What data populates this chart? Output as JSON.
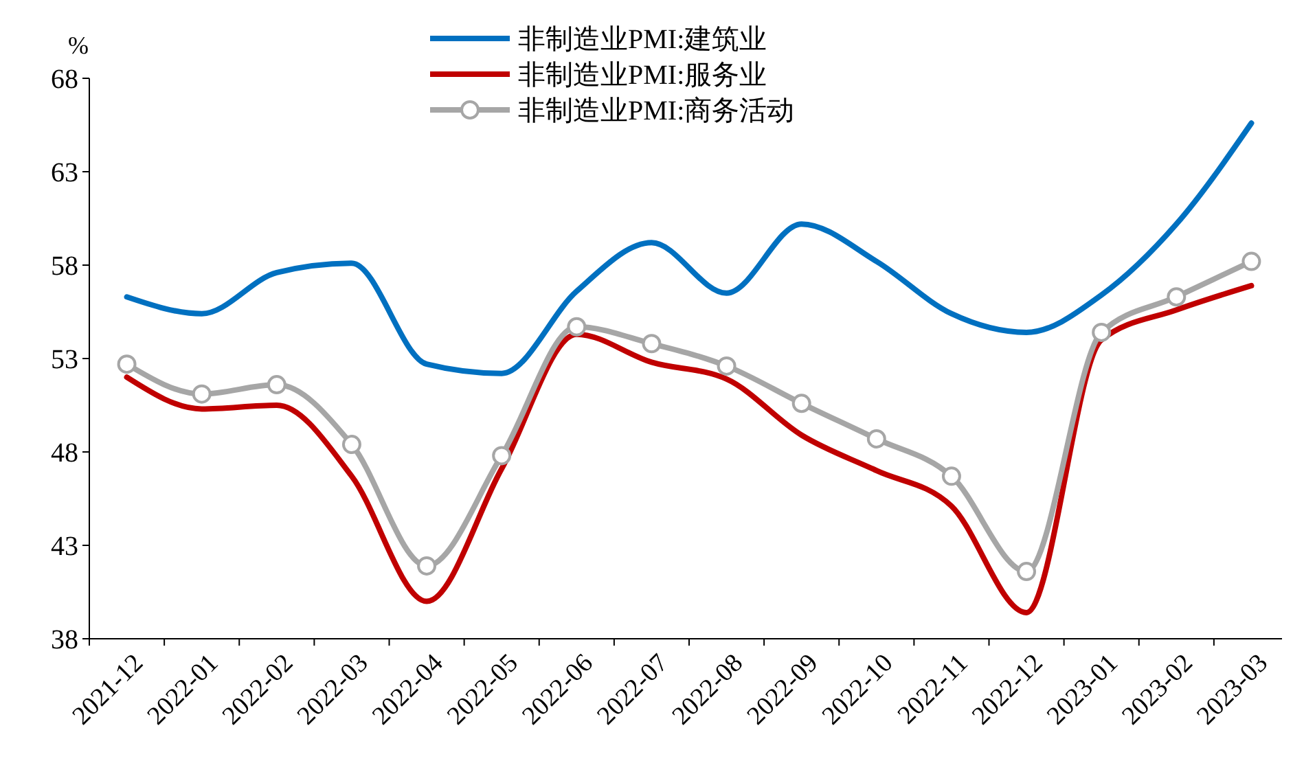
{
  "chart_data": {
    "type": "line",
    "ylabel": "%",
    "categories": [
      "2021-12",
      "2022-01",
      "2022-02",
      "2022-03",
      "2022-04",
      "2022-05",
      "2022-06",
      "2022-07",
      "2022-08",
      "2022-09",
      "2022-10",
      "2022-11",
      "2022-12",
      "2023-01",
      "2023-02",
      "2023-03"
    ],
    "series": [
      {
        "name": "非制造业PMI:建筑业",
        "color": "#0070c0",
        "marker": "none",
        "values": [
          56.3,
          55.4,
          57.6,
          58.1,
          52.7,
          52.2,
          56.6,
          59.2,
          56.5,
          60.2,
          58.2,
          55.4,
          54.4,
          56.4,
          60.2,
          65.6
        ]
      },
      {
        "name": "非制造业PMI:服务业",
        "color": "#c00000",
        "marker": "none",
        "values": [
          52.0,
          50.3,
          50.5,
          46.7,
          40.0,
          47.1,
          54.3,
          52.8,
          51.9,
          48.9,
          47.0,
          45.1,
          39.4,
          54.0,
          55.6,
          56.9
        ]
      },
      {
        "name": "非制造业PMI:商务活动",
        "color": "#a6a6a6",
        "marker": "circle",
        "values": [
          52.7,
          51.1,
          51.6,
          48.4,
          41.9,
          47.8,
          54.7,
          53.8,
          52.6,
          50.6,
          48.7,
          46.7,
          41.6,
          54.4,
          56.3,
          58.2
        ]
      }
    ],
    "ylim": [
      38,
      68
    ],
    "yticks": [
      38,
      43,
      48,
      53,
      58,
      63,
      68
    ],
    "grid": false,
    "legend": "top",
    "line_style": "solid"
  }
}
